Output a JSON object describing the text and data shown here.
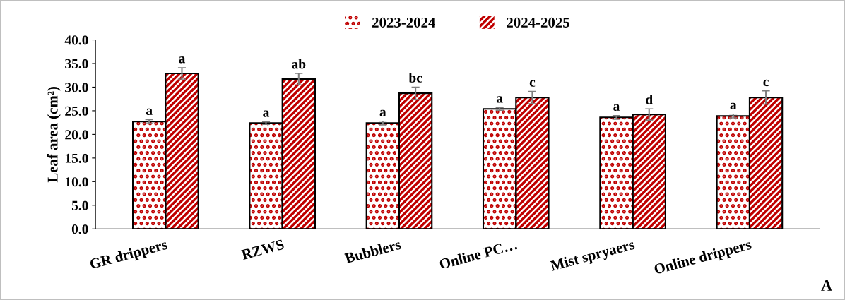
{
  "chart_data": {
    "type": "bar",
    "ylabel": "Leaf area (cm²)",
    "categories": [
      "GR drippers",
      "RZWS",
      "Bubblers",
      "Online PC…",
      "Mist spryaers",
      "Online drippers"
    ],
    "series": [
      {
        "name": "2023-2024",
        "color": "#c00000",
        "values": [
          22.7,
          22.4,
          22.4,
          25.4,
          23.6,
          23.9
        ],
        "errors": [
          0.4,
          0.3,
          0.4,
          0.3,
          0.4,
          0.4
        ],
        "value_labels": [
          "a",
          "a",
          "a",
          "a",
          "a",
          "a"
        ]
      },
      {
        "name": "2024-2025",
        "color": "#c00000",
        "values": [
          32.9,
          31.7,
          28.7,
          27.8,
          24.2,
          27.8
        ],
        "errors": [
          1.2,
          1.2,
          1.3,
          1.3,
          1.2,
          1.4
        ],
        "value_labels": [
          "a",
          "ab",
          "bc",
          "c",
          "d",
          "c"
        ]
      }
    ],
    "ylim": [
      0,
      40
    ],
    "yticks": [
      {
        "value": 0,
        "label": "0.0"
      },
      {
        "value": 5,
        "label": "5.0"
      },
      {
        "value": 10,
        "label": "10.0"
      },
      {
        "value": 15,
        "label": "15.0"
      },
      {
        "value": 20,
        "label": "20.0"
      },
      {
        "value": 25,
        "label": "25.0"
      },
      {
        "value": 30,
        "label": "30.0"
      },
      {
        "value": 35,
        "label": "35.0"
      },
      {
        "value": 40,
        "label": "40.0"
      }
    ],
    "legend": "top",
    "annotations": [
      "A"
    ]
  }
}
